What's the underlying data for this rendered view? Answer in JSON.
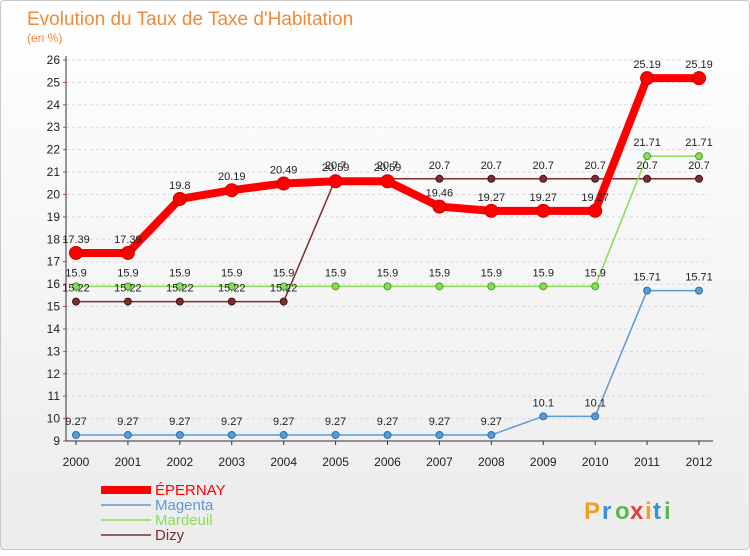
{
  "chart_data": {
    "type": "line",
    "title": "Evolution du Taux de Taxe d'Habitation",
    "subtitle": "(en %)",
    "xlabel": "",
    "ylabel": "",
    "x": [
      "2000",
      "2001",
      "2002",
      "2003",
      "2004",
      "2005",
      "2006",
      "2007",
      "2008",
      "2009",
      "2010",
      "2011",
      "2012"
    ],
    "ylim": [
      9,
      26
    ],
    "y_ticks": [
      9,
      10,
      11,
      12,
      13,
      14,
      15,
      16,
      17,
      18,
      19,
      20,
      21,
      22,
      23,
      24,
      25,
      26
    ],
    "grid": "horizontal dashed",
    "legend_position": "bottom-left",
    "series": [
      {
        "name": "ÉPERNAY",
        "color": "#ff0000",
        "values": [
          17.39,
          17.39,
          19.8,
          20.19,
          20.49,
          20.59,
          20.59,
          19.46,
          19.27,
          19.27,
          19.27,
          25.19,
          25.19
        ],
        "labels": [
          "17.39",
          "17.39",
          "19.8",
          "20.19",
          "20.49",
          "20.59",
          "20.59",
          "19.46",
          "19.27",
          "19.27",
          "19.27",
          "25.19",
          "25.19"
        ]
      },
      {
        "name": "Magenta",
        "color": "#5b9bd5",
        "values": [
          9.27,
          9.27,
          9.27,
          9.27,
          9.27,
          9.27,
          9.27,
          9.27,
          9.27,
          10.1,
          10.1,
          15.71,
          15.71
        ],
        "labels": [
          "9.27",
          "9.27",
          "9.27",
          "9.27",
          "9.27",
          "9.27",
          "9.27",
          "9.27",
          "9.27",
          "10.1",
          "10.1",
          "15.71",
          "15.71"
        ]
      },
      {
        "name": "Mardeuil",
        "color": "#88dd55",
        "values": [
          15.9,
          15.9,
          15.9,
          15.9,
          15.9,
          15.9,
          15.9,
          15.9,
          15.9,
          15.9,
          15.9,
          21.71,
          21.71
        ],
        "labels": [
          "15.9",
          "15.9",
          "15.9",
          "15.9",
          "15.9",
          "15.9",
          "15.9",
          "15.9",
          "15.9",
          "15.9",
          "15.9",
          "21.71",
          "21.71"
        ]
      },
      {
        "name": "Dizy",
        "color": "#7a2e2e",
        "values": [
          15.22,
          15.22,
          15.22,
          15.22,
          15.22,
          20.7,
          20.7,
          20.7,
          20.7,
          20.7,
          20.7,
          20.7,
          20.7
        ],
        "labels": [
          "15.22",
          "15.22",
          "15.22",
          "15.22",
          "15.22",
          "20.7",
          "20.7",
          "20.7",
          "20.7",
          "20.7",
          "20.7",
          "20.7",
          "20.7"
        ]
      }
    ]
  },
  "logo": {
    "text": "Proxiti",
    "letters": [
      "P",
      "r",
      "o",
      "x",
      "i",
      "t",
      "i"
    ],
    "colors": [
      "#f0a020",
      "#3a8fd8",
      "#58b848",
      "#e04040",
      "#f0a020",
      "#3a8fd8",
      "#58b848"
    ]
  }
}
